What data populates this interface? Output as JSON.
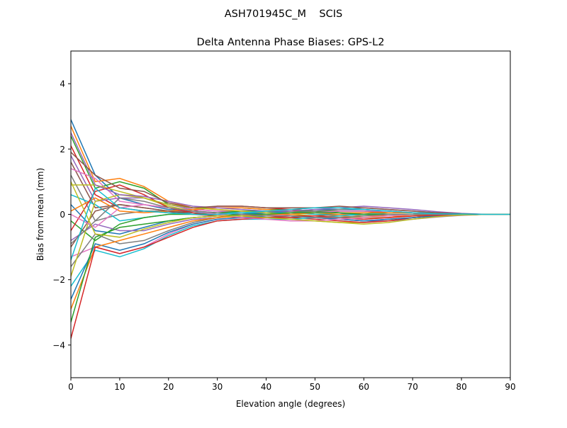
{
  "chart_data": {
    "type": "line",
    "suptitle": "ASH701945C_M    SCIS",
    "title": "Delta Antenna Phase Biases: GPS-L2",
    "xlabel": "Elevation angle (degrees)",
    "ylabel": "Bias from mean (mm)",
    "xlim": [
      0,
      90
    ],
    "ylim": [
      -5,
      5
    ],
    "xticks": [
      0,
      10,
      20,
      30,
      40,
      50,
      60,
      70,
      80,
      90
    ],
    "yticks": [
      -4,
      -2,
      0,
      2,
      4
    ],
    "ytick_labels": [
      "−4",
      "−2",
      "0",
      "2",
      "4"
    ],
    "grid": false,
    "colors": [
      "#1f77b4",
      "#ff7f0e",
      "#2ca02c",
      "#d62728",
      "#9467bd",
      "#8c564b",
      "#e377c2",
      "#7f7f7f",
      "#bcbd22",
      "#17becf"
    ],
    "x": [
      0,
      5,
      10,
      15,
      20,
      25,
      30,
      35,
      40,
      45,
      50,
      55,
      60,
      65,
      70,
      75,
      80,
      85,
      90
    ],
    "series": [
      {
        "values": [
          2.9,
          1.2,
          0.5,
          0.3,
          0.15,
          0.1,
          0.05,
          0.05,
          0.0,
          -0.05,
          -0.1,
          -0.15,
          -0.2,
          -0.15,
          -0.1,
          -0.05,
          -0.02,
          0,
          0
        ]
      },
      {
        "values": [
          2.7,
          1.0,
          1.1,
          0.85,
          0.4,
          0.2,
          0.15,
          0.1,
          0.1,
          0.05,
          0.0,
          -0.05,
          -0.1,
          -0.1,
          -0.05,
          -0.03,
          0,
          0,
          0
        ]
      },
      {
        "values": [
          2.4,
          0.8,
          1.0,
          0.8,
          0.3,
          0.2,
          0.2,
          0.2,
          0.15,
          0.15,
          0.1,
          0.1,
          0.1,
          0.05,
          0.05,
          0.02,
          0.01,
          0,
          0
        ]
      },
      {
        "values": [
          2.1,
          0.6,
          0.2,
          0.1,
          0.05,
          0.1,
          0.25,
          0.25,
          0.2,
          0.15,
          0.1,
          0.05,
          0.0,
          -0.05,
          -0.05,
          -0.03,
          0,
          0,
          0
        ]
      },
      {
        "values": [
          1.8,
          0.4,
          0.5,
          0.5,
          0.3,
          0.15,
          0.1,
          0.05,
          0.0,
          -0.05,
          -0.1,
          -0.15,
          -0.2,
          -0.2,
          -0.15,
          -0.08,
          -0.03,
          0,
          0
        ]
      },
      {
        "values": [
          1.6,
          0.2,
          0.3,
          0.2,
          0.1,
          0.05,
          0.0,
          -0.05,
          -0.1,
          -0.1,
          -0.05,
          0.0,
          0.05,
          0.05,
          0.05,
          0.03,
          0.01,
          0,
          0
        ]
      },
      {
        "values": [
          1.4,
          1.1,
          0.4,
          0.3,
          0.2,
          0.15,
          0.1,
          0.1,
          0.05,
          0.05,
          0.05,
          0.05,
          0.0,
          0.0,
          0.0,
          0.0,
          0,
          0,
          0
        ]
      },
      {
        "values": [
          1.2,
          -0.2,
          0.0,
          0.1,
          0.1,
          0.1,
          0.05,
          0.0,
          0.0,
          0.05,
          0.1,
          0.15,
          0.15,
          0.1,
          0.05,
          0.02,
          0.01,
          0,
          0
        ]
      },
      {
        "values": [
          0.9,
          0.9,
          0.7,
          0.5,
          0.25,
          0.1,
          0.0,
          -0.05,
          -0.1,
          -0.15,
          -0.2,
          -0.25,
          -0.25,
          -0.2,
          -0.1,
          -0.05,
          -0.02,
          0,
          0
        ]
      },
      {
        "values": [
          0.6,
          0.3,
          -0.2,
          -0.1,
          0.0,
          0.05,
          0.05,
          0.05,
          0.05,
          0.05,
          0.0,
          0.0,
          0.0,
          0.0,
          0.0,
          0.0,
          0,
          0,
          0
        ]
      },
      {
        "values": [
          0.3,
          -0.5,
          -0.6,
          -0.4,
          -0.2,
          -0.1,
          -0.05,
          0.0,
          0.05,
          0.1,
          0.15,
          0.15,
          0.15,
          0.1,
          0.05,
          0.03,
          0.01,
          0,
          0
        ]
      },
      {
        "values": [
          0.1,
          0.5,
          0.1,
          0.05,
          0.1,
          0.15,
          0.2,
          0.2,
          0.15,
          0.1,
          0.05,
          0.0,
          -0.05,
          -0.05,
          -0.05,
          -0.02,
          0,
          0,
          0
        ]
      },
      {
        "values": [
          -0.2,
          -0.8,
          -0.3,
          -0.1,
          0.0,
          0.0,
          0.05,
          0.1,
          0.1,
          0.1,
          0.1,
          0.05,
          0.05,
          0.0,
          0.0,
          0.0,
          0,
          0,
          0
        ]
      },
      {
        "values": [
          -0.5,
          0.7,
          0.9,
          0.6,
          0.2,
          0.05,
          -0.05,
          -0.1,
          -0.1,
          -0.1,
          -0.15,
          -0.2,
          -0.25,
          -0.2,
          -0.1,
          -0.05,
          -0.02,
          0,
          0
        ]
      },
      {
        "values": [
          -0.8,
          -0.3,
          -0.5,
          -0.5,
          -0.3,
          -0.15,
          -0.1,
          -0.05,
          0.0,
          0.05,
          0.05,
          0.1,
          0.1,
          0.1,
          0.05,
          0.03,
          0.01,
          0,
          0
        ]
      },
      {
        "values": [
          -1.0,
          0.1,
          0.3,
          0.2,
          0.1,
          0.0,
          -0.05,
          -0.05,
          -0.05,
          0.0,
          0.05,
          0.1,
          0.1,
          0.05,
          0.05,
          0.02,
          0,
          0,
          0
        ]
      },
      {
        "values": [
          -1.3,
          -1.0,
          -1.2,
          -1.0,
          -0.6,
          -0.3,
          -0.15,
          -0.1,
          -0.05,
          0.0,
          0.05,
          0.1,
          0.1,
          0.1,
          0.05,
          0.03,
          0.01,
          0,
          0
        ]
      },
      {
        "values": [
          -1.6,
          -0.6,
          -0.9,
          -0.8,
          -0.5,
          -0.25,
          -0.1,
          -0.05,
          0.0,
          0.05,
          0.1,
          0.15,
          0.2,
          0.15,
          0.1,
          0.05,
          0.02,
          0,
          0
        ]
      },
      {
        "values": [
          -1.9,
          0.4,
          0.6,
          0.5,
          0.3,
          0.2,
          0.15,
          0.1,
          0.05,
          0.0,
          -0.05,
          -0.1,
          -0.1,
          -0.1,
          -0.05,
          -0.03,
          0,
          0,
          0
        ]
      },
      {
        "values": [
          -2.2,
          -1.1,
          -1.3,
          -1.05,
          -0.65,
          -0.35,
          -0.2,
          -0.15,
          -0.15,
          -0.15,
          -0.1,
          -0.05,
          0.0,
          0.05,
          0.05,
          0.03,
          0.01,
          0,
          0
        ]
      },
      {
        "values": [
          -2.6,
          -0.9,
          -1.1,
          -0.9,
          -0.55,
          -0.3,
          -0.15,
          -0.1,
          -0.05,
          -0.05,
          -0.1,
          -0.15,
          -0.2,
          -0.15,
          -0.1,
          -0.05,
          -0.02,
          0,
          0
        ]
      },
      {
        "values": [
          -2.9,
          -1.0,
          -0.8,
          -0.6,
          -0.4,
          -0.2,
          -0.1,
          -0.05,
          0.0,
          0.0,
          0.05,
          0.05,
          0.05,
          0.05,
          0.05,
          0.02,
          0.01,
          0,
          0
        ]
      },
      {
        "values": [
          -3.3,
          -0.7,
          -0.4,
          -0.3,
          -0.2,
          -0.1,
          -0.05,
          0.0,
          0.0,
          0.05,
          0.05,
          0.05,
          0.0,
          0.0,
          0.0,
          0.0,
          0,
          0,
          0
        ]
      },
      {
        "values": [
          -3.8,
          -1.0,
          -1.2,
          -1.0,
          -0.7,
          -0.4,
          -0.2,
          -0.15,
          -0.1,
          -0.05,
          -0.05,
          -0.1,
          -0.15,
          -0.1,
          -0.05,
          -0.03,
          -0.01,
          0,
          0
        ]
      },
      {
        "values": [
          2.5,
          0.9,
          0.6,
          0.55,
          0.4,
          0.25,
          0.2,
          0.15,
          0.1,
          0.1,
          0.15,
          0.2,
          0.25,
          0.2,
          0.15,
          0.08,
          0.03,
          0,
          0
        ]
      },
      {
        "values": [
          1.9,
          1.2,
          0.8,
          0.7,
          0.35,
          0.2,
          0.25,
          0.25,
          0.2,
          0.2,
          0.2,
          0.25,
          0.2,
          0.15,
          0.1,
          0.05,
          0.02,
          0,
          0
        ]
      },
      {
        "values": [
          0.0,
          -0.4,
          0.2,
          0.3,
          0.2,
          0.1,
          0.0,
          -0.1,
          -0.15,
          -0.2,
          -0.2,
          -0.15,
          -0.1,
          -0.05,
          0.0,
          0.0,
          0,
          0,
          0
        ]
      },
      {
        "values": [
          -0.9,
          -0.2,
          0.5,
          0.4,
          0.2,
          0.1,
          0.05,
          0.0,
          -0.05,
          -0.05,
          -0.1,
          -0.1,
          -0.05,
          0.0,
          0.0,
          0.0,
          0,
          0,
          0
        ]
      },
      {
        "values": [
          1.0,
          -0.6,
          -0.7,
          -0.45,
          -0.25,
          -0.1,
          -0.05,
          -0.05,
          -0.1,
          -0.15,
          -0.2,
          -0.25,
          -0.3,
          -0.25,
          -0.15,
          -0.07,
          -0.02,
          0,
          0
        ]
      },
      {
        "values": [
          -1.4,
          0.8,
          0.2,
          0.1,
          0.05,
          0.0,
          0.0,
          0.05,
          0.1,
          0.15,
          0.2,
          0.2,
          0.15,
          0.1,
          0.05,
          0.02,
          0.01,
          0,
          0
        ]
      }
    ]
  }
}
